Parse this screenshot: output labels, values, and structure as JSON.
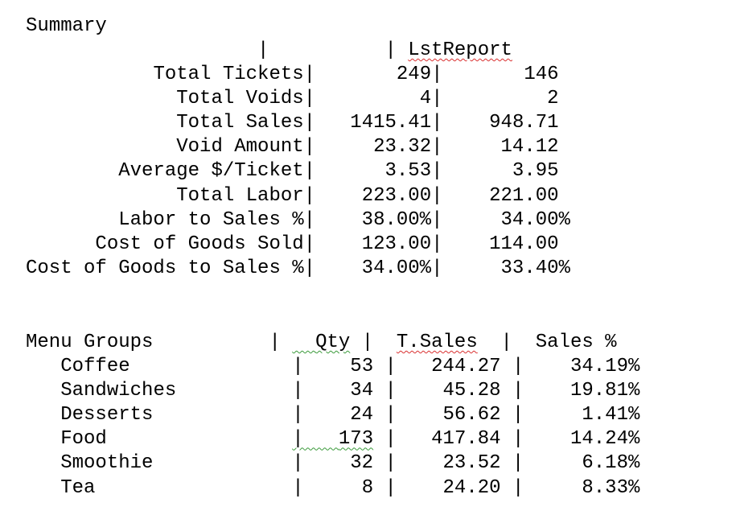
{
  "summary": {
    "title": "Summary",
    "col_header": "LstReport",
    "rows": [
      {
        "label": "Total Tickets",
        "current": "249",
        "last": "146"
      },
      {
        "label": "Total Voids",
        "current": "4",
        "last": "2"
      },
      {
        "label": "Total Sales",
        "current": "1415.41",
        "last": "948.71"
      },
      {
        "label": "Void Amount",
        "current": "23.32",
        "last": "14.12"
      },
      {
        "label": "Average $/Ticket",
        "current": "3.53",
        "last": "3.95"
      },
      {
        "label": "Total Labor",
        "current": "223.00",
        "last": "221.00"
      },
      {
        "label": "Labor to Sales %",
        "current": "38.00%",
        "last": "34.00%"
      },
      {
        "label": "Cost of Goods Sold",
        "current": "123.00",
        "last": "114.00"
      },
      {
        "label": "Cost of Goods to Sales %",
        "current": "34.00%",
        "last": "33.40%"
      }
    ]
  },
  "menu_groups": {
    "header_label": "Menu Groups",
    "header_qty": "Qty",
    "header_sales": "T.Sales",
    "header_pct": "Sales %",
    "rows": [
      {
        "name": "Coffee",
        "qty": "53",
        "sales": "244.27",
        "pct": "34.19%"
      },
      {
        "name": "Sandwiches",
        "qty": "34",
        "sales": "45.28",
        "pct": "19.81%"
      },
      {
        "name": "Desserts",
        "qty": "24",
        "sales": "56.62",
        "pct": "1.41%"
      },
      {
        "name": "Food",
        "qty": "173",
        "sales": "417.84",
        "pct": "14.24%"
      },
      {
        "name": "Smoothie",
        "qty": "32",
        "sales": "23.52",
        "pct": "6.18%"
      },
      {
        "name": "Tea",
        "qty": "8",
        "sales": "24.20",
        "pct": "8.33%"
      }
    ]
  }
}
